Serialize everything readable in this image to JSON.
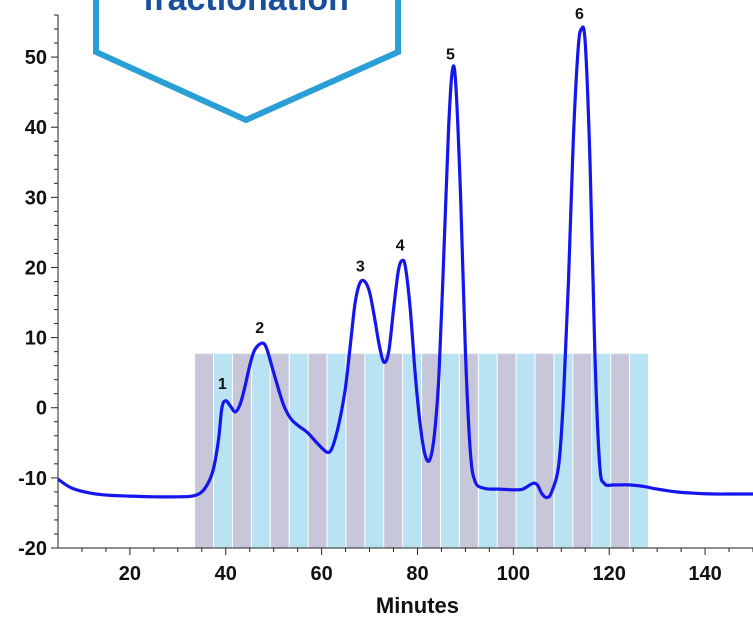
{
  "chart_data": {
    "type": "line",
    "title": "",
    "xlabel": "Minutes",
    "ylabel": "",
    "xlim": [
      5,
      150
    ],
    "ylim": [
      -20,
      56
    ],
    "x_ticks": [
      20,
      40,
      60,
      80,
      100,
      120,
      140
    ],
    "y_ticks": [
      -20,
      -10,
      0,
      10,
      20,
      30,
      40,
      50
    ],
    "grid": false,
    "series": [
      {
        "color": "#1515ee",
        "points": [
          [
            5,
            -10.2
          ],
          [
            8,
            -11.5
          ],
          [
            12,
            -12.2
          ],
          [
            16,
            -12.5
          ],
          [
            20,
            -12.6
          ],
          [
            25,
            -12.7
          ],
          [
            30,
            -12.7
          ],
          [
            33,
            -12.6
          ],
          [
            35,
            -12.0
          ],
          [
            36.5,
            -10.5
          ],
          [
            37.5,
            -8.5
          ],
          [
            38.5,
            -4.5
          ],
          [
            39.2,
            0
          ],
          [
            40,
            1.0
          ],
          [
            41,
            0.2
          ],
          [
            42,
            -0.6
          ],
          [
            43,
            0.5
          ],
          [
            44,
            3.0
          ],
          [
            45,
            6.0
          ],
          [
            46,
            8.2
          ],
          [
            47.5,
            9.2
          ],
          [
            48.5,
            8.5
          ],
          [
            50,
            5.0
          ],
          [
            52,
            0.5
          ],
          [
            53.5,
            -1.5
          ],
          [
            55,
            -2.5
          ],
          [
            57,
            -3.5
          ],
          [
            59,
            -5.0
          ],
          [
            61,
            -6.3
          ],
          [
            62,
            -6.0
          ],
          [
            63,
            -4.0
          ],
          [
            64,
            -1.0
          ],
          [
            65,
            3.0
          ],
          [
            66,
            9.0
          ],
          [
            67,
            15.0
          ],
          [
            68,
            17.8
          ],
          [
            69,
            18.0
          ],
          [
            70,
            16.5
          ],
          [
            71,
            13.0
          ],
          [
            72,
            9.0
          ],
          [
            73,
            6.5
          ],
          [
            74,
            8.0
          ],
          [
            75,
            14.0
          ],
          [
            76,
            19.5
          ],
          [
            76.8,
            21.0
          ],
          [
            77.5,
            20.0
          ],
          [
            78.5,
            14.0
          ],
          [
            79.5,
            5.0
          ],
          [
            80.5,
            -2.0
          ],
          [
            81.5,
            -6.5
          ],
          [
            82.5,
            -7.5
          ],
          [
            83.5,
            -4.0
          ],
          [
            84.5,
            5.0
          ],
          [
            85.5,
            22.0
          ],
          [
            86.5,
            40.0
          ],
          [
            87.3,
            48.2
          ],
          [
            88,
            46.0
          ],
          [
            89,
            30.0
          ],
          [
            90,
            8.0
          ],
          [
            91,
            -6.0
          ],
          [
            92,
            -10.5
          ],
          [
            94,
            -11.5
          ],
          [
            97,
            -11.6
          ],
          [
            100,
            -11.7
          ],
          [
            102,
            -11.6
          ],
          [
            104,
            -10.8
          ],
          [
            105,
            -11.0
          ],
          [
            106,
            -12.3
          ],
          [
            107,
            -12.8
          ],
          [
            108,
            -12.0
          ],
          [
            109.5,
            -8.0
          ],
          [
            110.5,
            2.0
          ],
          [
            111.5,
            18.0
          ],
          [
            112.5,
            38.0
          ],
          [
            113.5,
            51.0
          ],
          [
            114.2,
            54.0
          ],
          [
            115,
            52.0
          ],
          [
            116,
            35.0
          ],
          [
            117,
            8.0
          ],
          [
            118,
            -8.0
          ],
          [
            119,
            -10.8
          ],
          [
            121,
            -11.0
          ],
          [
            124,
            -11.0
          ],
          [
            127,
            -11.2
          ],
          [
            130,
            -11.6
          ],
          [
            134,
            -12.0
          ],
          [
            138,
            -12.2
          ],
          [
            142,
            -12.3
          ],
          [
            146,
            -12.3
          ],
          [
            150,
            -12.3
          ]
        ]
      }
    ],
    "peak_labels": [
      {
        "text": "1",
        "x": 39.7,
        "y": 1.5
      },
      {
        "text": "2",
        "x": 47.5,
        "y": 9.5
      },
      {
        "text": "3",
        "x": 68.5,
        "y": 18.3
      },
      {
        "text": "4",
        "x": 76.8,
        "y": 21.3
      },
      {
        "text": "5",
        "x": 87.3,
        "y": 48.5
      },
      {
        "text": "6",
        "x": 114.2,
        "y": 54.3
      }
    ],
    "fractions": {
      "x_start": 33.5,
      "x_end": 128.2,
      "y_top": 7.7,
      "y_bottom": -20,
      "count": 24,
      "colors": [
        "#c7c7d9",
        "#b9e3f2"
      ]
    },
    "callout": {
      "text": "fractionation",
      "fill": "#ffffff",
      "stroke": "#2a9fd6"
    }
  }
}
